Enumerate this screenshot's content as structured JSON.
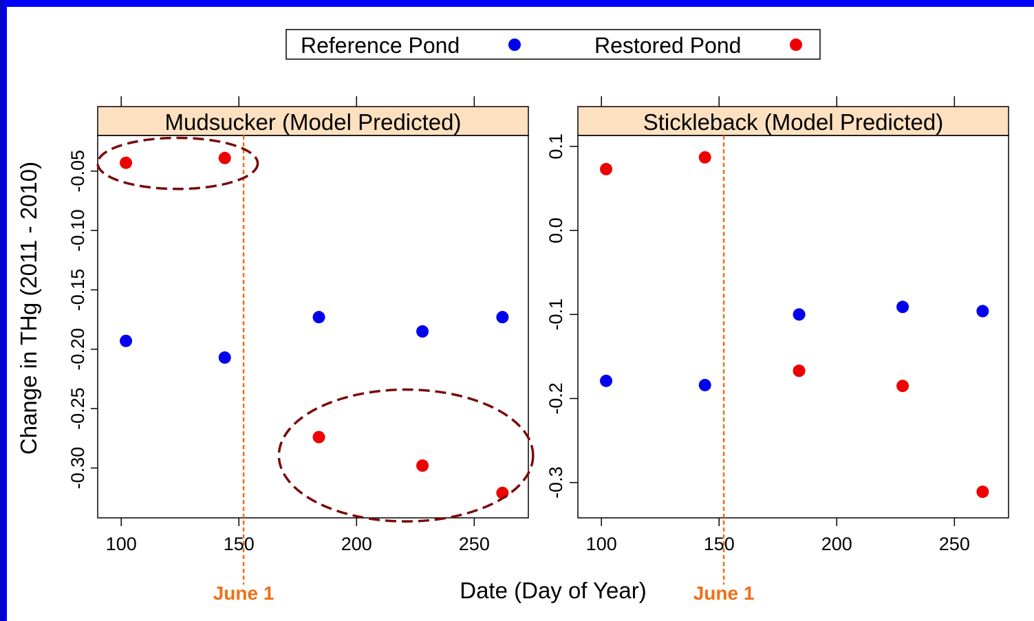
{
  "chart_data": {
    "type": "scatter",
    "xlabel": "Date (Day of Year)",
    "ylabel": "Change in THg (2011 - 2010)",
    "legend": {
      "placement": "top-center",
      "entries": [
        {
          "label": "Reference Pond",
          "color": "#0000ee"
        },
        {
          "label": "Restored Pond",
          "color": "#ee0000"
        }
      ]
    },
    "vline": {
      "x": 152,
      "label": "June 1",
      "color": "#f07018"
    },
    "x_ticks": [
      100,
      150,
      200,
      250
    ],
    "xlim": [
      90,
      273
    ],
    "panels": [
      {
        "title": "Mudsucker (Model Predicted)",
        "ylim": [
          -0.342,
          -0.02
        ],
        "y_ticks": [
          -0.05,
          -0.1,
          -0.15,
          -0.2,
          -0.25,
          -0.3
        ],
        "y_tick_labels": [
          "-0.05",
          "-0.10",
          "-0.15",
          "-0.20",
          "-0.25",
          "-0.30"
        ],
        "series": [
          {
            "name": "Reference Pond",
            "color": "#0000ee",
            "x": [
              102,
              144,
              184,
              228,
              262
            ],
            "y": [
              -0.193,
              -0.207,
              -0.173,
              -0.185,
              -0.173
            ]
          },
          {
            "name": "Restored Pond",
            "color": "#ee0000",
            "x": [
              102,
              144,
              184,
              228,
              262
            ],
            "y": [
              -0.043,
              -0.039,
              -0.274,
              -0.298,
              -0.321
            ]
          }
        ]
      },
      {
        "title": "Stickleback (Model Predicted)",
        "ylim": [
          -0.342,
          0.113
        ],
        "y_ticks": [
          0.1,
          0.0,
          -0.1,
          -0.2,
          -0.3
        ],
        "y_tick_labels": [
          "0.1",
          "0.0",
          "-0.1",
          "-0.2",
          "-0.3"
        ],
        "series": [
          {
            "name": "Reference Pond",
            "color": "#0000ee",
            "x": [
              102,
              144,
              184,
              228,
              262
            ],
            "y": [
              -0.179,
              -0.184,
              -0.1,
              -0.091,
              -0.096
            ]
          },
          {
            "name": "Restored Pond",
            "color": "#ee0000",
            "x": [
              102,
              144,
              184,
              228,
              262
            ],
            "y": [
              0.073,
              0.087,
              -0.167,
              -0.185,
              -0.311
            ]
          }
        ]
      }
    ],
    "highlights": [
      {
        "panel": 0,
        "x": [
          90,
          158
        ],
        "y": [
          -0.065,
          -0.022
        ]
      },
      {
        "panel": 0,
        "x": [
          167,
          275
        ],
        "y": [
          -0.345,
          -0.234
        ]
      }
    ]
  }
}
